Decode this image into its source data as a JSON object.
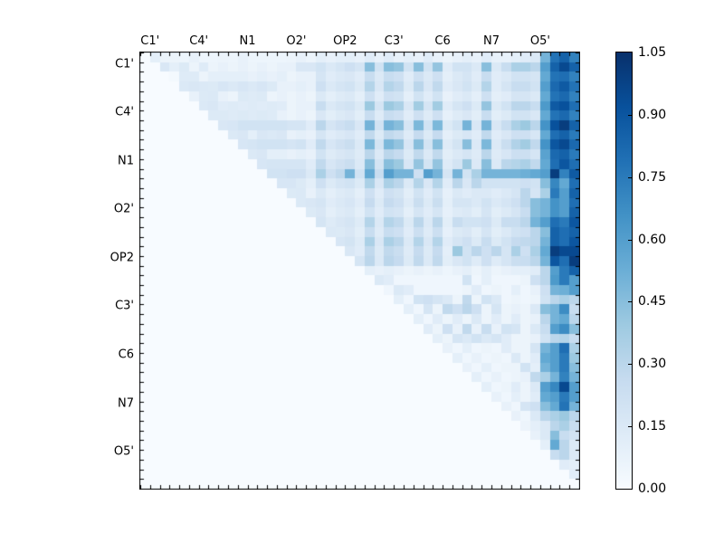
{
  "chart_data": {
    "type": "heatmap",
    "title": "",
    "x_axis_labels": [
      "C1'",
      "C4'",
      "N1",
      "O2'",
      "OP2",
      "C3'",
      "C6",
      "N7",
      "O5'"
    ],
    "y_axis_labels": [
      "C1'",
      "C4'",
      "N1",
      "O2'",
      "OP2",
      "C3'",
      "C6",
      "N7",
      "O5'"
    ],
    "label_grid_positions": [
      1,
      6,
      11,
      16,
      21,
      26,
      31,
      36,
      41
    ],
    "n": 45,
    "vmin": 0.0,
    "vmax": 1.05,
    "colormap_name": "Blues",
    "colormap_stops": [
      "#f7fbff",
      "#deebf7",
      "#c6dbef",
      "#9ecae1",
      "#6baed6",
      "#4292c6",
      "#2171b5",
      "#08519c",
      "#08306b"
    ],
    "colorbar_tick_labels": [
      "0.00",
      "0.15",
      "0.30",
      "0.45",
      "0.60",
      "0.75",
      "0.90",
      "1.05"
    ],
    "grid": false,
    "lower_triangle_value": 0.0,
    "upper_triangle_rows": [
      [
        0.1,
        0.06,
        0.06,
        0.05,
        0.08,
        0.05,
        0.05,
        0.06,
        0.05,
        0.08,
        0.05,
        0.05,
        0.05,
        0.05,
        0.06,
        0.08,
        0.06,
        0.1,
        0.08,
        0.1,
        0.1,
        0.08,
        0.12,
        0.08,
        0.12,
        0.08,
        0.1,
        0.08,
        0.12,
        0.08,
        0.06,
        0.08,
        0.1,
        0.08,
        0.12,
        0.08,
        0.08,
        0.1,
        0.12,
        0.15,
        0.5,
        0.78,
        0.85,
        0.72
      ],
      [
        0.16,
        0.1,
        0.14,
        0.06,
        0.13,
        0.06,
        0.08,
        0.06,
        0.08,
        0.06,
        0.08,
        0.06,
        0.08,
        0.08,
        0.16,
        0.16,
        0.2,
        0.15,
        0.18,
        0.22,
        0.18,
        0.45,
        0.2,
        0.45,
        0.42,
        0.2,
        0.45,
        0.2,
        0.42,
        0.12,
        0.2,
        0.2,
        0.15,
        0.45,
        0.15,
        0.25,
        0.35,
        0.35,
        0.3,
        0.6,
        0.85,
        0.95,
        0.85
      ],
      [
        0.02,
        0.13,
        0.13,
        0.06,
        0.1,
        0.1,
        0.1,
        0.1,
        0.08,
        0.1,
        0.08,
        0.1,
        0.06,
        0.08,
        0.08,
        0.18,
        0.12,
        0.15,
        0.16,
        0.12,
        0.25,
        0.15,
        0.25,
        0.22,
        0.12,
        0.22,
        0.15,
        0.22,
        0.1,
        0.15,
        0.18,
        0.12,
        0.25,
        0.12,
        0.15,
        0.2,
        0.2,
        0.18,
        0.55,
        0.78,
        0.8,
        0.72
      ],
      [
        0.15,
        0.16,
        0.15,
        0.14,
        0.17,
        0.15,
        0.17,
        0.15,
        0.17,
        0.14,
        0.08,
        0.08,
        0.1,
        0.08,
        0.22,
        0.15,
        0.18,
        0.2,
        0.14,
        0.32,
        0.16,
        0.32,
        0.28,
        0.14,
        0.3,
        0.16,
        0.28,
        0.12,
        0.16,
        0.2,
        0.14,
        0.32,
        0.12,
        0.18,
        0.25,
        0.25,
        0.2,
        0.6,
        0.82,
        0.88,
        0.78
      ],
      [
        0.08,
        0.14,
        0.15,
        0.08,
        0.06,
        0.14,
        0.13,
        0.14,
        0.06,
        0.08,
        0.06,
        0.08,
        0.06,
        0.15,
        0.1,
        0.13,
        0.15,
        0.1,
        0.22,
        0.12,
        0.22,
        0.2,
        0.1,
        0.2,
        0.12,
        0.2,
        0.08,
        0.12,
        0.15,
        0.1,
        0.22,
        0.1,
        0.12,
        0.18,
        0.18,
        0.15,
        0.55,
        0.78,
        0.82,
        0.72
      ],
      [
        0.15,
        0.16,
        0.12,
        0.13,
        0.12,
        0.13,
        0.12,
        0.13,
        0.12,
        0.06,
        0.08,
        0.08,
        0.25,
        0.15,
        0.18,
        0.2,
        0.14,
        0.4,
        0.18,
        0.4,
        0.35,
        0.16,
        0.38,
        0.18,
        0.38,
        0.12,
        0.18,
        0.22,
        0.14,
        0.42,
        0.14,
        0.2,
        0.3,
        0.3,
        0.25,
        0.62,
        0.88,
        0.92,
        0.8
      ],
      [
        0.14,
        0.14,
        0.13,
        0.14,
        0.13,
        0.14,
        0.13,
        0.08,
        0.06,
        0.08,
        0.06,
        0.16,
        0.11,
        0.14,
        0.16,
        0.11,
        0.25,
        0.13,
        0.25,
        0.22,
        0.12,
        0.22,
        0.13,
        0.22,
        0.09,
        0.13,
        0.16,
        0.11,
        0.25,
        0.11,
        0.14,
        0.2,
        0.2,
        0.16,
        0.55,
        0.78,
        0.82,
        0.72
      ],
      [
        0.16,
        0.17,
        0.2,
        0.2,
        0.2,
        0.2,
        0.2,
        0.18,
        0.18,
        0.12,
        0.3,
        0.18,
        0.22,
        0.25,
        0.16,
        0.5,
        0.2,
        0.5,
        0.45,
        0.18,
        0.48,
        0.2,
        0.48,
        0.14,
        0.2,
        0.5,
        0.16,
        0.5,
        0.16,
        0.25,
        0.35,
        0.4,
        0.3,
        0.65,
        0.92,
        1.0,
        0.85
      ],
      [
        0.15,
        0.16,
        0.1,
        0.16,
        0.15,
        0.16,
        0.08,
        0.1,
        0.08,
        0.18,
        0.12,
        0.15,
        0.17,
        0.12,
        0.28,
        0.14,
        0.28,
        0.24,
        0.13,
        0.26,
        0.14,
        0.26,
        0.1,
        0.14,
        0.17,
        0.12,
        0.28,
        0.12,
        0.16,
        0.22,
        0.22,
        0.17,
        0.55,
        0.8,
        0.85,
        0.75
      ],
      [
        0.17,
        0.18,
        0.2,
        0.2,
        0.2,
        0.18,
        0.2,
        0.12,
        0.28,
        0.17,
        0.21,
        0.24,
        0.15,
        0.48,
        0.19,
        0.48,
        0.42,
        0.17,
        0.45,
        0.19,
        0.45,
        0.13,
        0.19,
        0.45,
        0.15,
        0.48,
        0.15,
        0.24,
        0.33,
        0.38,
        0.28,
        0.65,
        0.9,
        0.95,
        0.82
      ],
      [
        0.15,
        0.16,
        0.1,
        0.1,
        0.08,
        0.1,
        0.08,
        0.2,
        0.13,
        0.16,
        0.18,
        0.13,
        0.3,
        0.15,
        0.3,
        0.26,
        0.14,
        0.28,
        0.15,
        0.28,
        0.11,
        0.15,
        0.18,
        0.13,
        0.3,
        0.13,
        0.17,
        0.23,
        0.23,
        0.18,
        0.58,
        0.82,
        0.85,
        0.75
      ],
      [
        0.17,
        0.18,
        0.18,
        0.18,
        0.18,
        0.12,
        0.28,
        0.17,
        0.21,
        0.24,
        0.15,
        0.45,
        0.19,
        0.45,
        0.4,
        0.17,
        0.42,
        0.19,
        0.42,
        0.13,
        0.19,
        0.4,
        0.15,
        0.45,
        0.15,
        0.3,
        0.32,
        0.35,
        0.28,
        0.55,
        0.8,
        0.9,
        0.8
      ],
      [
        0.2,
        0.2,
        0.22,
        0.22,
        0.15,
        0.35,
        0.22,
        0.28,
        0.5,
        0.2,
        0.55,
        0.25,
        0.6,
        0.5,
        0.5,
        0.22,
        0.6,
        0.5,
        0.18,
        0.5,
        0.2,
        0.35,
        0.5,
        0.5,
        0.5,
        0.5,
        0.52,
        0.55,
        0.6,
        1.0,
        0.72,
        0.88
      ],
      [
        0.17,
        0.17,
        0.14,
        0.1,
        0.22,
        0.14,
        0.18,
        0.2,
        0.14,
        0.35,
        0.16,
        0.35,
        0.3,
        0.15,
        0.32,
        0.16,
        0.32,
        0.12,
        0.3,
        0.16,
        0.3,
        0.2,
        0.2,
        0.2,
        0.2,
        0.22,
        0.2,
        0.45,
        0.7,
        0.55,
        0.8
      ],
      [
        0.14,
        0.15,
        0.08,
        0.15,
        0.1,
        0.13,
        0.15,
        0.1,
        0.22,
        0.12,
        0.22,
        0.19,
        0.11,
        0.2,
        0.12,
        0.2,
        0.09,
        0.15,
        0.12,
        0.15,
        0.15,
        0.12,
        0.15,
        0.18,
        0.3,
        0.18,
        0.35,
        0.75,
        0.6,
        0.85
      ],
      [
        0.15,
        0.16,
        0.18,
        0.12,
        0.15,
        0.17,
        0.12,
        0.26,
        0.14,
        0.26,
        0.22,
        0.13,
        0.24,
        0.14,
        0.24,
        0.1,
        0.18,
        0.18,
        0.15,
        0.2,
        0.15,
        0.18,
        0.22,
        0.3,
        0.45,
        0.5,
        0.65,
        0.6,
        0.8
      ],
      [
        0.14,
        0.16,
        0.1,
        0.13,
        0.15,
        0.1,
        0.2,
        0.12,
        0.2,
        0.18,
        0.1,
        0.18,
        0.12,
        0.18,
        0.09,
        0.13,
        0.15,
        0.11,
        0.18,
        0.11,
        0.14,
        0.18,
        0.25,
        0.45,
        0.5,
        0.65,
        0.6,
        0.85
      ],
      [
        0.18,
        0.13,
        0.16,
        0.18,
        0.13,
        0.32,
        0.15,
        0.32,
        0.28,
        0.14,
        0.3,
        0.15,
        0.3,
        0.11,
        0.25,
        0.2,
        0.2,
        0.22,
        0.14,
        0.25,
        0.25,
        0.3,
        0.5,
        0.6,
        0.8,
        0.75,
        0.9
      ],
      [
        0.15,
        0.14,
        0.16,
        0.11,
        0.25,
        0.13,
        0.25,
        0.22,
        0.12,
        0.23,
        0.13,
        0.23,
        0.09,
        0.14,
        0.16,
        0.11,
        0.18,
        0.11,
        0.15,
        0.2,
        0.22,
        0.3,
        0.45,
        0.85,
        0.8,
        0.85
      ],
      [
        0.17,
        0.19,
        0.13,
        0.35,
        0.16,
        0.35,
        0.3,
        0.15,
        0.32,
        0.16,
        0.32,
        0.12,
        0.18,
        0.22,
        0.14,
        0.25,
        0.14,
        0.2,
        0.26,
        0.28,
        0.3,
        0.5,
        0.85,
        0.8,
        0.9
      ],
      [
        0.16,
        0.12,
        0.28,
        0.14,
        0.28,
        0.24,
        0.13,
        0.26,
        0.14,
        0.26,
        0.1,
        0.4,
        0.2,
        0.3,
        0.22,
        0.3,
        0.18,
        0.35,
        0.22,
        0.35,
        0.55,
        1.0,
        0.95,
        0.95
      ],
      [
        0.18,
        0.3,
        0.15,
        0.3,
        0.26,
        0.14,
        0.28,
        0.15,
        0.28,
        0.11,
        0.16,
        0.2,
        0.13,
        0.22,
        0.13,
        0.18,
        0.24,
        0.25,
        0.3,
        0.5,
        0.9,
        0.8,
        1.0
      ],
      [
        0.1,
        0.08,
        0.1,
        0.08,
        0.06,
        0.08,
        0.06,
        0.08,
        0.05,
        0.08,
        0.1,
        0.06,
        0.1,
        0.06,
        0.08,
        0.1,
        0.1,
        0.12,
        0.3,
        0.6,
        0.75,
        0.85
      ],
      [
        0.15,
        0.12,
        0.04,
        0.04,
        0.04,
        0.04,
        0.04,
        0.04,
        0.04,
        0.2,
        0.04,
        0.1,
        0.04,
        0.04,
        0.04,
        0.06,
        0.22,
        0.3,
        0.62,
        0.75,
        0.6
      ],
      [
        0.04,
        0.15,
        0.12,
        0.04,
        0.04,
        0.04,
        0.04,
        0.04,
        0.06,
        0.12,
        0.04,
        0.06,
        0.04,
        0.1,
        0.04,
        0.08,
        0.22,
        0.5,
        0.52,
        0.6
      ],
      [
        0.1,
        0.04,
        0.2,
        0.22,
        0.18,
        0.15,
        0.06,
        0.28,
        0.06,
        0.2,
        0.15,
        0.04,
        0.06,
        0.04,
        0.06,
        0.2,
        0.3,
        0.35,
        0.3
      ],
      [
        0.1,
        0.04,
        0.18,
        0.06,
        0.28,
        0.22,
        0.3,
        0.22,
        0.06,
        0.18,
        0.06,
        0.08,
        0.06,
        0.15,
        0.45,
        0.5,
        0.68,
        0.25
      ],
      [
        0.1,
        0.04,
        0.12,
        0.06,
        0.12,
        0.06,
        0.15,
        0.06,
        0.12,
        0.06,
        0.12,
        0.06,
        0.08,
        0.3,
        0.5,
        0.55,
        0.3
      ],
      [
        0.12,
        0.06,
        0.22,
        0.08,
        0.28,
        0.08,
        0.25,
        0.08,
        0.2,
        0.18,
        0.06,
        0.15,
        0.25,
        0.6,
        0.68,
        0.45
      ],
      [
        0.1,
        0.06,
        0.18,
        0.15,
        0.2,
        0.15,
        0.18,
        0.12,
        0.06,
        0.06,
        0.08,
        0.2,
        0.3,
        0.32,
        0.25
      ],
      [
        0.08,
        0.04,
        0.1,
        0.04,
        0.06,
        0.04,
        0.12,
        0.06,
        0.06,
        0.18,
        0.5,
        0.6,
        0.8,
        0.35
      ],
      [
        0.1,
        0.04,
        0.08,
        0.04,
        0.06,
        0.04,
        0.15,
        0.06,
        0.12,
        0.55,
        0.6,
        0.75,
        0.4
      ],
      [
        0.08,
        0.04,
        0.1,
        0.04,
        0.06,
        0.06,
        0.2,
        0.1,
        0.5,
        0.6,
        0.75,
        0.45
      ],
      [
        0.1,
        0.04,
        0.08,
        0.04,
        0.06,
        0.08,
        0.28,
        0.35,
        0.5,
        0.72,
        0.5
      ],
      [
        0.1,
        0.04,
        0.06,
        0.12,
        0.06,
        0.15,
        0.6,
        0.7,
        0.95,
        0.6
      ],
      [
        0.08,
        0.04,
        0.1,
        0.06,
        0.12,
        0.55,
        0.6,
        0.75,
        0.6
      ],
      [
        0.08,
        0.04,
        0.18,
        0.22,
        0.45,
        0.55,
        0.78,
        0.5
      ],
      [
        0.08,
        0.04,
        0.15,
        0.3,
        0.35,
        0.4,
        0.3
      ],
      [
        0.06,
        0.1,
        0.15,
        0.3,
        0.35,
        0.25
      ],
      [
        0.08,
        0.15,
        0.45,
        0.25,
        0.2
      ],
      [
        0.1,
        0.55,
        0.3,
        0.15
      ],
      [
        0.25,
        0.3,
        0.15
      ],
      [
        0.12,
        0.1
      ],
      [
        0.12
      ],
      []
    ]
  }
}
